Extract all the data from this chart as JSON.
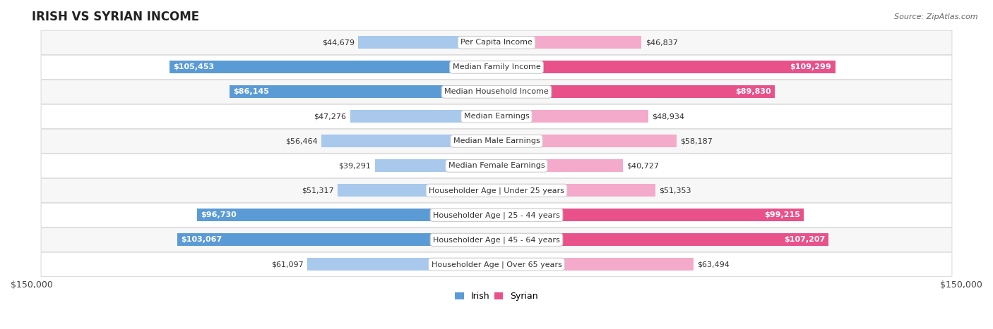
{
  "title": "IRISH VS SYRIAN INCOME",
  "source": "Source: ZipAtlas.com",
  "categories": [
    "Per Capita Income",
    "Median Family Income",
    "Median Household Income",
    "Median Earnings",
    "Median Male Earnings",
    "Median Female Earnings",
    "Householder Age | Under 25 years",
    "Householder Age | 25 - 44 years",
    "Householder Age | 45 - 64 years",
    "Householder Age | Over 65 years"
  ],
  "irish_values": [
    44679,
    105453,
    86145,
    47276,
    56464,
    39291,
    51317,
    96730,
    103067,
    61097
  ],
  "syrian_values": [
    46837,
    109299,
    89830,
    48934,
    58187,
    40727,
    51353,
    99215,
    107207,
    63494
  ],
  "irish_color_light": "#A8C8EC",
  "irish_color_dark": "#5B9BD5",
  "syrian_color_light": "#F4AACA",
  "syrian_color_dark": "#E8518A",
  "dark_threshold": 80000,
  "max_value": 150000,
  "bar_height": 0.52,
  "bg_color": "#FFFFFF",
  "row_bg_even": "#F7F7F7",
  "row_bg_odd": "#FFFFFF",
  "row_border": "#DDDDDD",
  "title_fontsize": 12,
  "source_fontsize": 8,
  "tick_fontsize": 9,
  "label_fontsize": 8,
  "value_fontsize": 8
}
